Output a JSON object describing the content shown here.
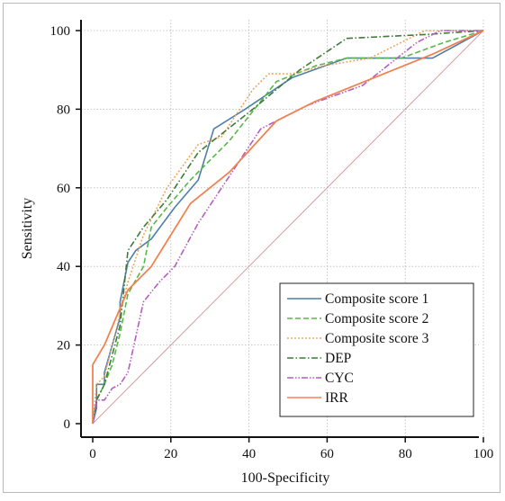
{
  "chart_data": {
    "type": "line",
    "xlabel": "100-Specificity",
    "ylabel": "Sensitivity",
    "xlim": [
      0,
      100
    ],
    "ylim": [
      0,
      100
    ],
    "x_ticks": [
      "0",
      "20",
      "40",
      "60",
      "80",
      "100"
    ],
    "y_ticks": [
      "0",
      "20",
      "40",
      "60",
      "80",
      "100"
    ],
    "grid": true,
    "legend_position": "bottom-right",
    "reference_line": {
      "x": [
        0,
        100
      ],
      "y": [
        0,
        100
      ],
      "color": "#d49aa0"
    },
    "series": [
      {
        "name": "Composite score 1",
        "color": "#4e7fa8",
        "dash": "solid",
        "x": [
          0,
          1,
          1,
          3,
          3,
          5,
          7,
          7,
          9,
          11,
          15,
          21,
          27,
          31,
          39,
          51,
          65,
          87,
          100
        ],
        "y": [
          0,
          4,
          10,
          10,
          13,
          20,
          27,
          31,
          41,
          44,
          47,
          55,
          62,
          75,
          80,
          88,
          93,
          93,
          100
        ]
      },
      {
        "name": "Composite score 2",
        "color": "#56b846",
        "dash": "dashed",
        "x": [
          0,
          1,
          3,
          5,
          7,
          9,
          13,
          15,
          19,
          25,
          35,
          47,
          57,
          65,
          79,
          90,
          100
        ],
        "y": [
          0,
          6,
          10,
          15,
          23,
          33,
          40,
          50,
          55,
          62,
          72,
          87,
          91,
          93,
          93,
          97,
          100
        ]
      },
      {
        "name": "Composite score 3",
        "color": "#f0a050",
        "dash": "dotted",
        "x": [
          0,
          1,
          3,
          5,
          9,
          13,
          19,
          27,
          33,
          41,
          45,
          51,
          59,
          71,
          83,
          85,
          100
        ],
        "y": [
          0,
          10,
          12,
          20,
          36,
          48,
          60,
          71,
          73,
          85,
          89,
          89,
          91,
          93,
          99,
          100,
          100
        ]
      },
      {
        "name": "DEP",
        "color": "#3f7a3a",
        "dash": "dashdot",
        "x": [
          0,
          1,
          3,
          7,
          9,
          13,
          19,
          27,
          41,
          53,
          65,
          85,
          100
        ],
        "y": [
          0,
          6,
          10,
          25,
          44,
          50,
          57,
          69,
          80,
          90,
          98,
          99,
          100
        ]
      },
      {
        "name": "CYC",
        "color": "#b65cc2",
        "dash": "dashdotdot",
        "x": [
          0,
          1,
          3,
          5,
          7,
          9,
          13,
          17,
          21,
          27,
          35,
          43,
          49,
          55,
          69,
          83,
          89,
          100
        ],
        "y": [
          0,
          6,
          6,
          9,
          10,
          13,
          31,
          36,
          40,
          51,
          63,
          75,
          78,
          81,
          86,
          97,
          100,
          100
        ]
      },
      {
        "name": "IRR",
        "color": "#f08250",
        "dash": "solid",
        "x": [
          0,
          0,
          3,
          9,
          15,
          25,
          35,
          47,
          57,
          67,
          77,
          87,
          100
        ],
        "y": [
          0,
          15,
          20,
          34,
          40,
          56,
          64,
          77,
          82,
          86,
          90,
          94,
          100
        ]
      }
    ]
  }
}
